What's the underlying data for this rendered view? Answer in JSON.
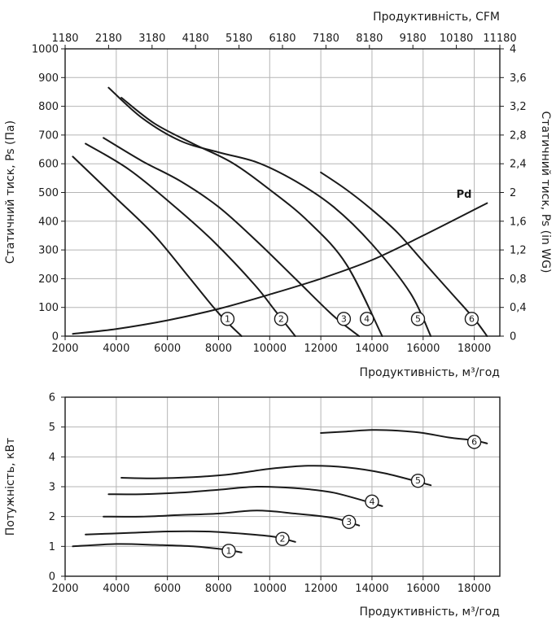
{
  "chart_data": [
    {
      "type": "line",
      "title": "",
      "xlabel": "Продуктивність, м³/год",
      "x2label": "Продуктивність, CFM",
      "ylabel": "Статичний тиск, Ps (Па)",
      "y2label": "Статичний тиск, Ps (in WG)",
      "xlim": [
        2000,
        19000
      ],
      "ylim": [
        0,
        1000
      ],
      "x2lim": [
        1180,
        11180
      ],
      "y2lim": [
        0,
        4
      ],
      "xticks": [
        "2000",
        "4000",
        "6000",
        "8000",
        "10000",
        "12000",
        "14000",
        "16000",
        "18000"
      ],
      "yticks": [
        "0",
        "100",
        "200",
        "300",
        "400",
        "500",
        "600",
        "700",
        "800",
        "900",
        "1000"
      ],
      "x2ticks": [
        "1180",
        "2180",
        "3180",
        "4180",
        "5180",
        "6180",
        "7180",
        "8180",
        "9180",
        "10180",
        "11180"
      ],
      "y2ticks": [
        "0",
        "0,4",
        "0,8",
        "1,2",
        "1,6",
        "2",
        "2,4",
        "2,8",
        "3,2",
        "3,6",
        "4"
      ],
      "grid": true,
      "series": [
        {
          "name": "1",
          "x": [
            2300,
            4000,
            5500,
            6800,
            8000,
            8900
          ],
          "y": [
            625,
            480,
            350,
            210,
            80,
            0
          ],
          "marker_x": 8350,
          "marker_y": 60
        },
        {
          "name": "2",
          "x": [
            2800,
            4500,
            6300,
            7800,
            9400,
            10200,
            11000
          ],
          "y": [
            670,
            580,
            450,
            330,
            180,
            90,
            0
          ],
          "marker_x": 10450,
          "marker_y": 60
        },
        {
          "name": "3",
          "x": [
            3500,
            5000,
            6500,
            8000,
            9500,
            11000,
            12500,
            13500
          ],
          "y": [
            690,
            610,
            540,
            450,
            330,
            200,
            70,
            0
          ],
          "marker_x": 12900,
          "marker_y": 60
        },
        {
          "name": "4",
          "x": [
            4200,
            5500,
            7000,
            8500,
            10000,
            11500,
            13000,
            14400
          ],
          "y": [
            830,
            740,
            670,
            605,
            510,
            400,
            250,
            0
          ],
          "marker_x": 13800,
          "marker_y": 60
        },
        {
          "name": "5",
          "x": [
            3700,
            5000,
            6500,
            8000,
            9500,
            11000,
            12500,
            14000,
            15500,
            16300
          ],
          "y": [
            865,
            760,
            680,
            640,
            605,
            540,
            450,
            320,
            150,
            0
          ],
          "marker_x": 15800,
          "marker_y": 60
        },
        {
          "name": "6",
          "x": [
            12000,
            13000,
            14000,
            15000,
            16000,
            17000,
            18000,
            18500
          ],
          "y": [
            570,
            510,
            440,
            360,
            260,
            160,
            60,
            0
          ],
          "marker_x": 17900,
          "marker_y": 60
        },
        {
          "name": "Pd",
          "x": [
            2300,
            4000,
            6000,
            8000,
            10000,
            12000,
            14000,
            16000,
            18500
          ],
          "y": [
            8,
            25,
            55,
            95,
            145,
            200,
            265,
            350,
            463
          ],
          "label_x": 17300,
          "label_y": 470
        }
      ]
    },
    {
      "type": "line",
      "title": "",
      "xlabel": "Продуктивність, м³/год",
      "ylabel": "Потужність, кВт",
      "xlim": [
        2000,
        19000
      ],
      "ylim": [
        0,
        6
      ],
      "xticks": [
        "2000",
        "4000",
        "6000",
        "8000",
        "10000",
        "12000",
        "14000",
        "16000",
        "18000"
      ],
      "yticks": [
        "0",
        "1",
        "2",
        "3",
        "4",
        "5",
        "6"
      ],
      "grid": true,
      "series": [
        {
          "name": "1",
          "x": [
            2300,
            4000,
            5500,
            7000,
            8200,
            8900
          ],
          "y": [
            1.0,
            1.08,
            1.05,
            1.0,
            0.9,
            0.8
          ],
          "marker_x": 8400,
          "marker_y": 0.85
        },
        {
          "name": "2",
          "x": [
            2800,
            4500,
            6000,
            7500,
            9000,
            10200,
            11000
          ],
          "y": [
            1.4,
            1.45,
            1.5,
            1.5,
            1.42,
            1.32,
            1.15
          ],
          "marker_x": 10500,
          "marker_y": 1.25
        },
        {
          "name": "3",
          "x": [
            3500,
            5000,
            6500,
            8000,
            9500,
            11000,
            12500,
            13500
          ],
          "y": [
            2.0,
            2.0,
            2.05,
            2.1,
            2.2,
            2.1,
            1.95,
            1.7
          ],
          "marker_x": 13100,
          "marker_y": 1.82
        },
        {
          "name": "4",
          "x": [
            3700,
            5000,
            6500,
            8000,
            9500,
            11000,
            12500,
            14400
          ],
          "y": [
            2.75,
            2.75,
            2.8,
            2.9,
            3.0,
            2.95,
            2.8,
            2.35
          ],
          "marker_x": 14000,
          "marker_y": 2.5
        },
        {
          "name": "5",
          "x": [
            4200,
            5500,
            7000,
            8500,
            10000,
            11500,
            13000,
            14500,
            16300
          ],
          "y": [
            3.3,
            3.28,
            3.32,
            3.42,
            3.6,
            3.7,
            3.65,
            3.45,
            3.05
          ],
          "marker_x": 15800,
          "marker_y": 3.2
        },
        {
          "name": "6",
          "x": [
            12000,
            13000,
            14000,
            15000,
            16000,
            17000,
            18000,
            18500
          ],
          "y": [
            4.8,
            4.85,
            4.9,
            4.88,
            4.8,
            4.65,
            4.55,
            4.45
          ],
          "marker_x": 18000,
          "marker_y": 4.5
        }
      ]
    }
  ]
}
